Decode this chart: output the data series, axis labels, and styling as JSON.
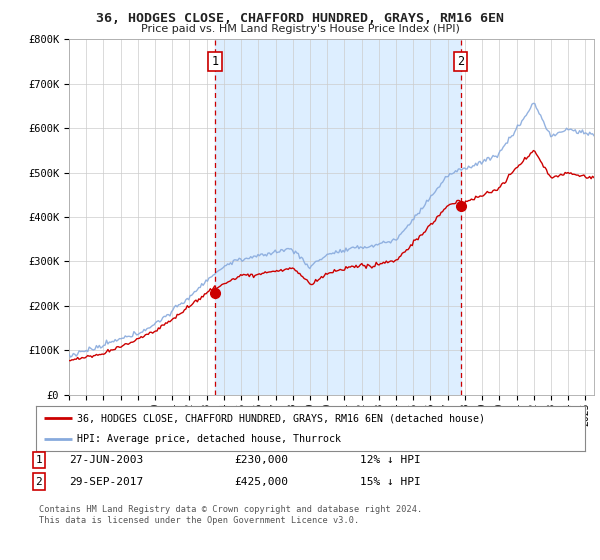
{
  "title": "36, HODGES CLOSE, CHAFFORD HUNDRED, GRAYS, RM16 6EN",
  "subtitle": "Price paid vs. HM Land Registry's House Price Index (HPI)",
  "red_label": "36, HODGES CLOSE, CHAFFORD HUNDRED, GRAYS, RM16 6EN (detached house)",
  "blue_label": "HPI: Average price, detached house, Thurrock",
  "ylim": [
    0,
    800000
  ],
  "yticks": [
    0,
    100000,
    200000,
    300000,
    400000,
    500000,
    600000,
    700000,
    800000
  ],
  "ytick_labels": [
    "£0",
    "£100K",
    "£200K",
    "£300K",
    "£400K",
    "£500K",
    "£600K",
    "£700K",
    "£800K"
  ],
  "sale1_year": 2003.5,
  "sale1_price": 230000,
  "sale1_label": "1",
  "sale1_text": "27-JUN-2003",
  "sale1_amount": "£230,000",
  "sale1_hpi": "12% ↓ HPI",
  "sale2_year": 2017.75,
  "sale2_price": 425000,
  "sale2_label": "2",
  "sale2_text": "29-SEP-2017",
  "sale2_amount": "£425,000",
  "sale2_hpi": "15% ↓ HPI",
  "footer": "Contains HM Land Registry data © Crown copyright and database right 2024.\nThis data is licensed under the Open Government Licence v3.0.",
  "title_color": "#222222",
  "red_color": "#cc0000",
  "blue_color": "#88aadd",
  "shade_color": "#ddeeff",
  "background_color": "#ffffff",
  "grid_color": "#cccccc",
  "xmin": 1995,
  "xmax": 2025.5
}
